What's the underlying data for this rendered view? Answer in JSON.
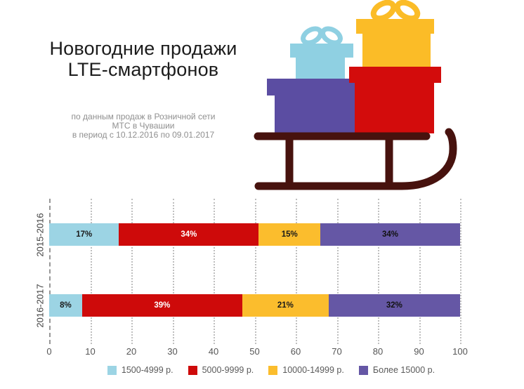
{
  "header": {
    "title": [
      "Новогодние продажи",
      "LTE-смартфонов"
    ],
    "subtitle": [
      "по данным продаж в Розничной сети",
      "МТС в Чувашии",
      "в период с 10.12.2016 по 09.01.2017"
    ]
  },
  "illustration": {
    "description": "sled-with-gift-boxes",
    "colors": {
      "sled": "#47120E",
      "gift_blue": "#8FD0E2",
      "gift_red": "#D30C0C",
      "gift_yellow": "#FBBC27",
      "gift_purple": "#5B4DA2"
    }
  },
  "chart_data": {
    "type": "bar",
    "orientation": "horizontal",
    "stacked": true,
    "categories": [
      "2015-2016",
      "2016-2017"
    ],
    "series": [
      {
        "name": "1500-4999 р.",
        "color": "#9CD4E4",
        "label_color": "#1a1a1a",
        "values": [
          17,
          8
        ],
        "labels": [
          "17%",
          "8%"
        ]
      },
      {
        "name": "5000-9999 р.",
        "color": "#CE0A0A",
        "label_color": "#ffffff",
        "values": [
          34,
          39
        ],
        "labels": [
          "34%",
          "39%"
        ]
      },
      {
        "name": "10000-14999 р.",
        "color": "#FBBD2D",
        "label_color": "#1a1a1a",
        "values": [
          15,
          21
        ],
        "labels": [
          "15%",
          "21%"
        ]
      },
      {
        "name": "Более 15000 р.",
        "color": "#6557A5",
        "label_color": "#111111",
        "values": [
          34,
          32
        ],
        "labels": [
          "34%",
          "32%"
        ]
      }
    ],
    "xlim": [
      0,
      100
    ],
    "x_ticks": [
      0,
      10,
      20,
      30,
      40,
      50,
      60,
      70,
      80,
      90,
      100
    ],
    "grid": "vertical-dotted",
    "legend_position": "bottom"
  }
}
